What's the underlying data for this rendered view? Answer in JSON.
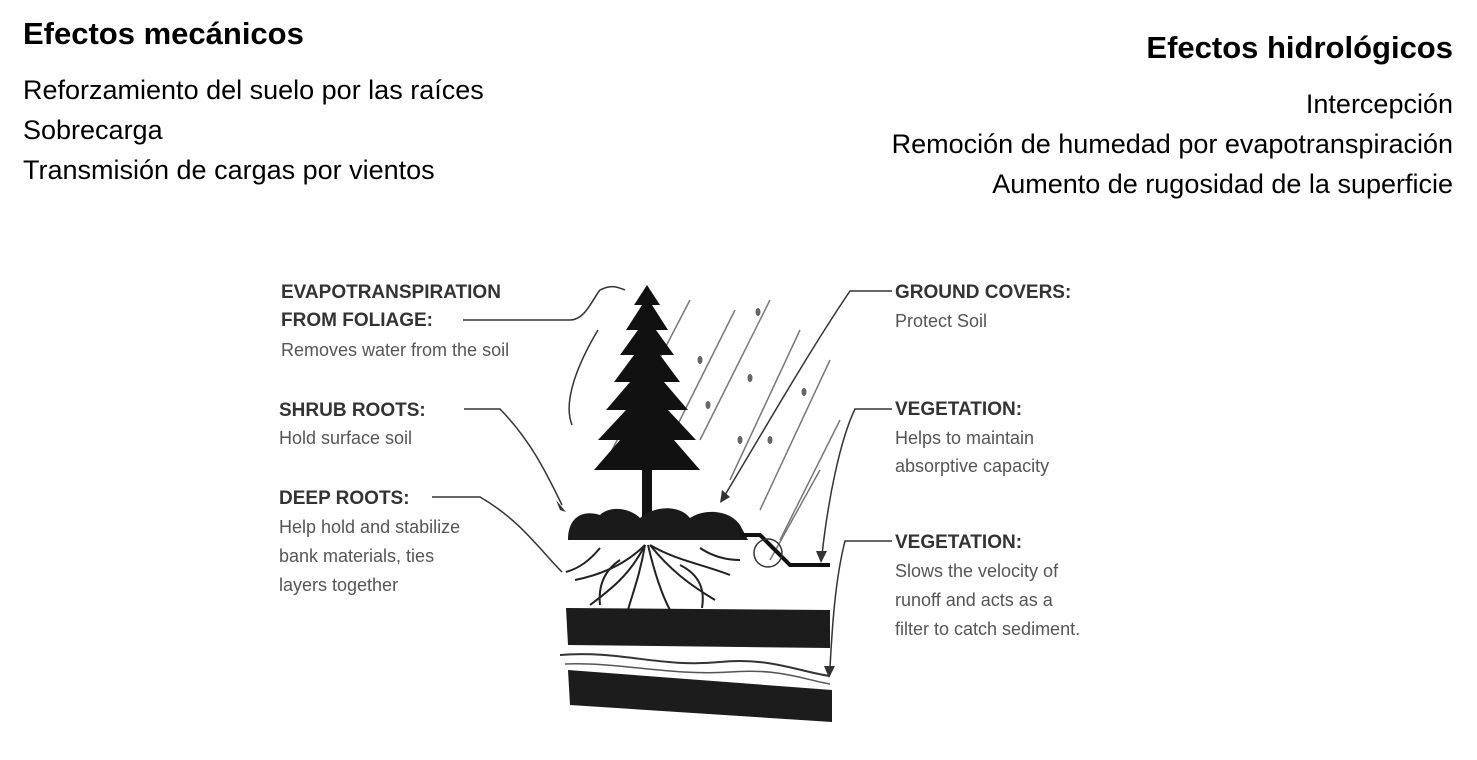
{
  "mechanical": {
    "title": "Efectos mecánicos",
    "items": [
      "Reforzamiento del suelo por las raíces",
      "Sobrecarga",
      "Transmisión de cargas por vientos"
    ]
  },
  "hydrological": {
    "title": "Efectos hidrológicos",
    "items": [
      "Intercepción",
      "Remoción de humedad por evapotranspiración",
      "Aumento de rugosidad de la superficie"
    ]
  },
  "diagram": {
    "evapotranspiration": {
      "title_line1": "EVAPOTRANSPIRATION",
      "title_line2": "FROM FOLIAGE:",
      "body": "Removes water from the soil"
    },
    "shrub_roots": {
      "title": "SHRUB ROOTS:",
      "body": "Hold surface soil"
    },
    "deep_roots": {
      "title": "DEEP ROOTS:",
      "body_line1": "Help hold and stabilize",
      "body_line2": "bank materials, ties",
      "body_line3": "layers together"
    },
    "ground_covers": {
      "title": "GROUND COVERS:",
      "body": "Protect Soil"
    },
    "vegetation_1": {
      "title": "VEGETATION:",
      "body_line1": "Helps to maintain",
      "body_line2": "absorptive capacity"
    },
    "vegetation_2": {
      "title": "VEGETATION:",
      "body_line1": "Slows the velocity of",
      "body_line2": "runoff and acts as a",
      "body_line3": "filter to catch sediment."
    }
  }
}
